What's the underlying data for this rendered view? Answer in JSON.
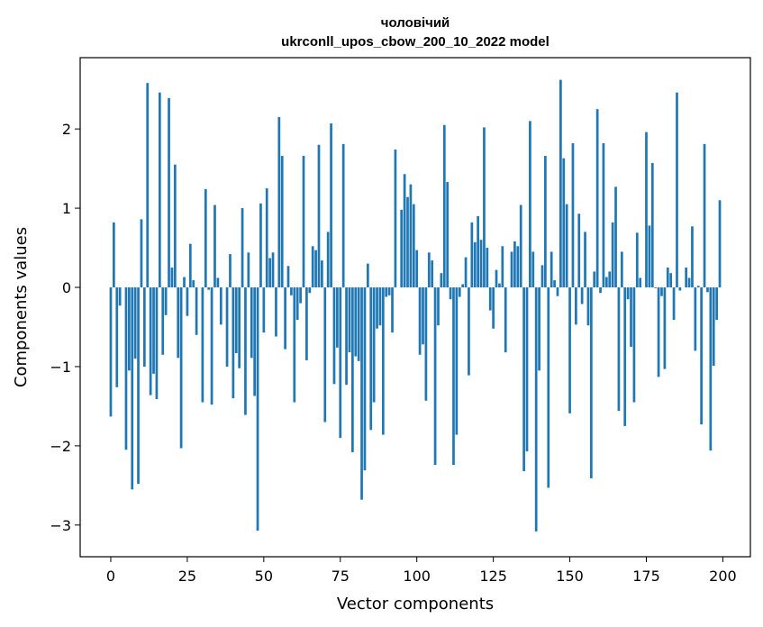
{
  "chart_data": {
    "type": "bar",
    "title_line1": "чоловічий",
    "title_line2": "ukrconll_upos_cbow_200_10_2022 model",
    "xlabel": "Vector components",
    "ylabel": "Components values",
    "xlim": [
      -10,
      209
    ],
    "ylim": [
      -3.4,
      2.9
    ],
    "xticks": [
      0,
      25,
      50,
      75,
      100,
      125,
      150,
      175,
      200
    ],
    "yticks": [
      -3,
      -2,
      -1,
      0,
      1,
      2
    ],
    "ytick_labels": [
      "−3",
      "−2",
      "−1",
      "0",
      "1",
      "2"
    ],
    "bar_color": "#1f77b4",
    "grid": false,
    "values": [
      -1.63,
      0.82,
      -1.26,
      -0.23,
      0.0,
      -2.05,
      -1.05,
      -2.55,
      -0.9,
      -2.48,
      0.86,
      -1.0,
      2.58,
      -1.36,
      -1.09,
      -1.41,
      2.46,
      -0.85,
      -0.35,
      2.39,
      0.25,
      1.55,
      -0.89,
      -2.03,
      0.13,
      -0.36,
      0.55,
      0.09,
      -0.6,
      0.0,
      -1.45,
      1.24,
      -0.03,
      -1.48,
      1.04,
      0.12,
      -0.47,
      0.0,
      -1.0,
      0.42,
      -1.4,
      -0.83,
      -1.02,
      1.0,
      -1.61,
      0.44,
      -0.89,
      -1.37,
      -3.07,
      1.06,
      -0.57,
      1.25,
      0.37,
      0.44,
      -0.62,
      2.15,
      1.66,
      -0.78,
      0.27,
      -0.1,
      -1.45,
      -0.41,
      -0.2,
      1.66,
      -0.92,
      -0.07,
      0.52,
      0.47,
      1.8,
      0.34,
      -1.7,
      0.7,
      2.07,
      -1.22,
      -0.76,
      -1.9,
      1.81,
      -1.23,
      -0.82,
      -2.08,
      -0.87,
      -0.93,
      -2.68,
      -2.31,
      0.3,
      -1.8,
      -1.45,
      -0.52,
      -0.48,
      -1.86,
      -0.12,
      -0.1,
      -0.57,
      1.74,
      0.0,
      0.98,
      1.43,
      1.14,
      1.3,
      1.05,
      0.47,
      -0.85,
      -0.72,
      -1.43,
      0.44,
      0.34,
      -2.24,
      -0.48,
      0.18,
      2.05,
      1.33,
      -0.15,
      -2.24,
      -1.86,
      -0.12,
      0.04,
      0.38,
      -1.11,
      0.82,
      0.57,
      0.9,
      0.6,
      2.02,
      0.5,
      -0.29,
      -0.52,
      0.22,
      0.05,
      0.52,
      -0.82,
      0.0,
      0.45,
      0.58,
      0.52,
      1.04,
      -2.32,
      -2.07,
      2.1,
      0.45,
      -3.08,
      -1.05,
      0.28,
      1.66,
      -2.53,
      0.45,
      0.09,
      -0.11,
      2.62,
      1.63,
      1.05,
      -1.59,
      1.82,
      -0.47,
      0.93,
      -0.21,
      0.7,
      -0.48,
      -2.41,
      0.2,
      2.25,
      -0.07,
      1.82,
      0.13,
      0.2,
      0.82,
      1.27,
      -1.56,
      0.45,
      -1.75,
      -0.15,
      -0.75,
      -1.45,
      0.69,
      0.12,
      0.0,
      1.96,
      0.78,
      1.57,
      -0.01,
      -1.13,
      -0.11,
      -1.03,
      0.25,
      0.18,
      -0.41,
      2.46,
      -0.04,
      0.0,
      0.25,
      0.12,
      0.77,
      -0.8,
      0.02,
      -1.73,
      1.81,
      -0.06,
      -2.06,
      -0.99,
      -0.41,
      1.1
    ]
  }
}
